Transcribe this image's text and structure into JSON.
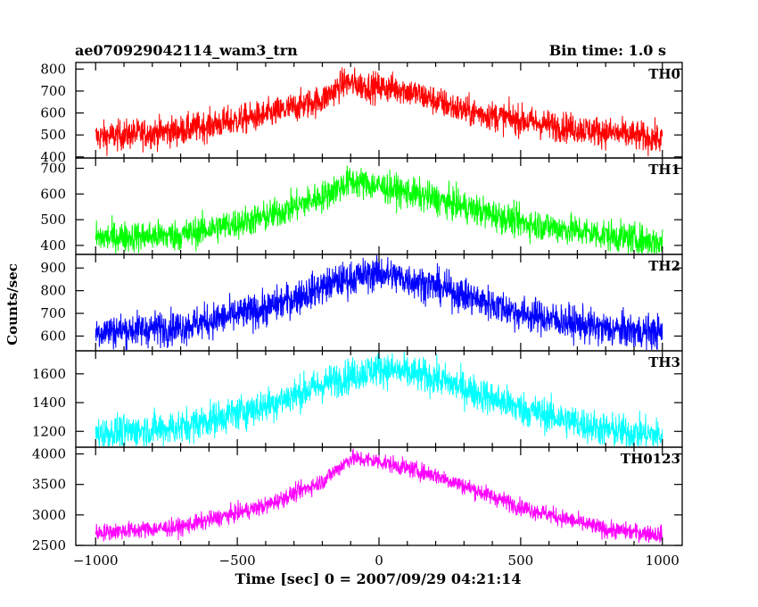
{
  "header": {
    "title": "ae070929042114_wam3_trn",
    "bin_time": "Bin time: 1.0 s"
  },
  "axes": {
    "xlabel": "Time [sec] 0 = 2007/09/29 04:21:14",
    "ylabel": "Counts/sec"
  },
  "chart_data": {
    "type": "line",
    "title": "ae070929042114_wam3_trn",
    "xlabel": "Time [sec] 0 = 2007/09/29 04:21:14",
    "ylabel": "Counts/sec",
    "xlim": [
      -1070,
      1070
    ],
    "x_ticks": [
      -1000,
      -500,
      0,
      500,
      1000
    ],
    "x_tick_labels": [
      "−1000",
      "−500",
      "0",
      "500",
      "1000"
    ],
    "bin_time_s": 1.0,
    "x_range": [
      -1000,
      1000
    ],
    "panels": [
      {
        "name": "TH0",
        "color": "#ff0000",
        "ylim": [
          395,
          830
        ],
        "y_ticks": [
          400,
          500,
          600,
          700,
          800
        ],
        "profile": [
          [
            -1000,
            490
          ],
          [
            -700,
            520
          ],
          [
            -400,
            590
          ],
          [
            -200,
            660
          ],
          [
            -120,
            740
          ],
          [
            -40,
            720
          ],
          [
            80,
            710
          ],
          [
            300,
            610
          ],
          [
            600,
            545
          ],
          [
            1000,
            480
          ]
        ],
        "noise": 34
      },
      {
        "name": "TH1",
        "color": "#00ff00",
        "ylim": [
          365,
          740
        ],
        "y_ticks": [
          400,
          500,
          600,
          700
        ],
        "profile": [
          [
            -1000,
            430
          ],
          [
            -700,
            440
          ],
          [
            -400,
            510
          ],
          [
            -200,
            590
          ],
          [
            -100,
            650
          ],
          [
            0,
            630
          ],
          [
            200,
            580
          ],
          [
            500,
            490
          ],
          [
            800,
            440
          ],
          [
            1000,
            410
          ]
        ],
        "noise": 30
      },
      {
        "name": "TH2",
        "color": "#0000ff",
        "ylim": [
          535,
          960
        ],
        "y_ticks": [
          600,
          700,
          800,
          900
        ],
        "profile": [
          [
            -1000,
            620
          ],
          [
            -700,
            640
          ],
          [
            -400,
            720
          ],
          [
            -150,
            840
          ],
          [
            0,
            880
          ],
          [
            200,
            820
          ],
          [
            500,
            700
          ],
          [
            800,
            630
          ],
          [
            1000,
            615
          ]
        ],
        "noise": 38
      },
      {
        "name": "TH3",
        "color": "#00ffff",
        "ylim": [
          1090,
          1760
        ],
        "y_ticks": [
          1200,
          1400,
          1600
        ],
        "profile": [
          [
            -1000,
            1180
          ],
          [
            -700,
            1230
          ],
          [
            -400,
            1380
          ],
          [
            -150,
            1560
          ],
          [
            0,
            1640
          ],
          [
            200,
            1570
          ],
          [
            500,
            1360
          ],
          [
            800,
            1210
          ],
          [
            1000,
            1170
          ]
        ],
        "noise": 60
      },
      {
        "name": "TH0123",
        "color": "#ff00ff",
        "ylim": [
          2500,
          4110
        ],
        "y_ticks": [
          2500,
          3000,
          3500,
          4000
        ],
        "profile": [
          [
            -1000,
            2710
          ],
          [
            -700,
            2800
          ],
          [
            -400,
            3150
          ],
          [
            -200,
            3550
          ],
          [
            -100,
            3930
          ],
          [
            0,
            3880
          ],
          [
            200,
            3650
          ],
          [
            500,
            3130
          ],
          [
            800,
            2760
          ],
          [
            1000,
            2680
          ]
        ],
        "noise": 70
      }
    ]
  }
}
